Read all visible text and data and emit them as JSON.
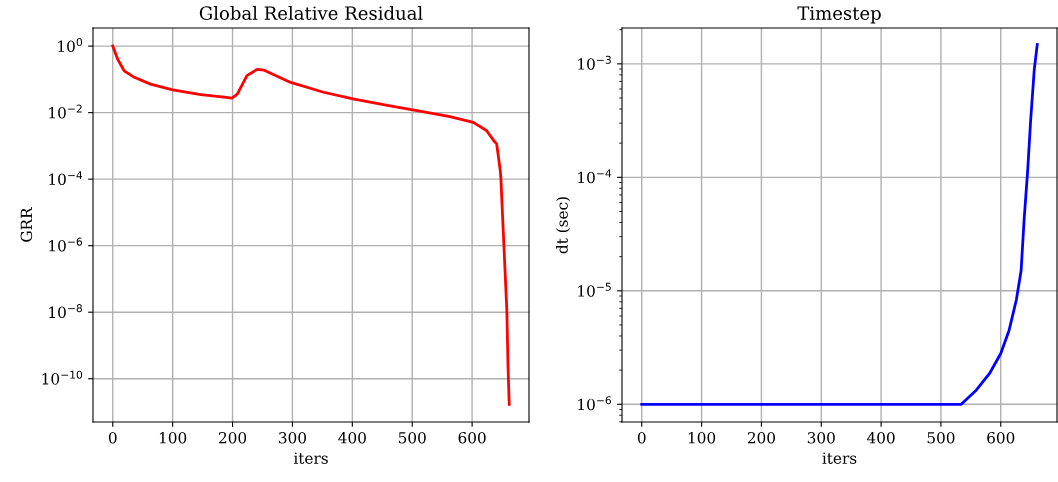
{
  "chart_data": [
    {
      "type": "line",
      "title": "Global Relative Residual",
      "xlabel": "iters",
      "ylabel": "GRR",
      "log": "y",
      "grid": true,
      "xlim": [
        -33,
        695
      ],
      "xticks": [
        0,
        100,
        200,
        300,
        400,
        500,
        600
      ],
      "ylim": [
        5e-12,
        3.5
      ],
      "yticks": [
        {
          "value": 1,
          "label": "10$^{0}$"
        },
        {
          "value": 0.01,
          "label": "10$^{−2}$"
        },
        {
          "value": 0.0001,
          "label": "10$^{−4}$"
        },
        {
          "value": 1e-06,
          "label": "10$^{−6}$"
        },
        {
          "value": 1e-08,
          "label": "10$^{−8}$"
        },
        {
          "value": 1e-10,
          "label": "10$^{−10}$"
        }
      ],
      "series": [
        {
          "color": "#ff0000",
          "x": [
            0,
            8,
            19,
            36,
            63,
            100,
            147,
            186,
            199,
            208,
            224,
            241,
            252,
            297,
            352,
            401,
            463,
            501,
            563,
            602,
            624,
            638,
            641,
            647,
            648,
            653,
            658,
            660,
            662
          ],
          "values": [
            1.0,
            0.41,
            0.18,
            0.115,
            0.072,
            0.048,
            0.035,
            0.029,
            0.0275,
            0.036,
            0.13,
            0.2,
            0.19,
            0.081,
            0.041,
            0.026,
            0.016,
            0.012,
            0.0076,
            0.0051,
            0.0029,
            0.0013,
            0.00115,
            0.00018,
            0.00011,
            1.1e-06,
            1.1e-08,
            2.2e-10,
            1.7e-11
          ]
        }
      ]
    },
    {
      "type": "line",
      "title": "Timestep",
      "xlabel": "iters",
      "ylabel": "dt (sec)",
      "log": "y",
      "grid": true,
      "xlim": [
        -33,
        694
      ],
      "xticks": [
        0,
        100,
        200,
        300,
        400,
        500,
        600
      ],
      "ylim": [
        6.98e-07,
        0.00207
      ],
      "yticks": [
        {
          "value": 1e-06,
          "label": "10$^{−6}$"
        },
        {
          "value": 1e-05,
          "label": "10$^{−5}$"
        },
        {
          "value": 0.0001,
          "label": "10$^{−4}$"
        },
        {
          "value": 0.001,
          "label": "10$^{−3}$"
        }
      ],
      "series": [
        {
          "color": "#0000ff",
          "x": [
            0,
            534,
            559,
            581,
            600,
            614,
            626,
            634,
            639,
            645,
            650,
            656,
            661
          ],
          "values": [
            1e-06,
            1e-06,
            1.33e-06,
            1.86e-06,
            2.8e-06,
            4.5e-06,
            8.3e-06,
            1.5e-05,
            4.2e-05,
            0.000115,
            0.00032,
            0.00089,
            0.00148
          ]
        }
      ]
    }
  ]
}
